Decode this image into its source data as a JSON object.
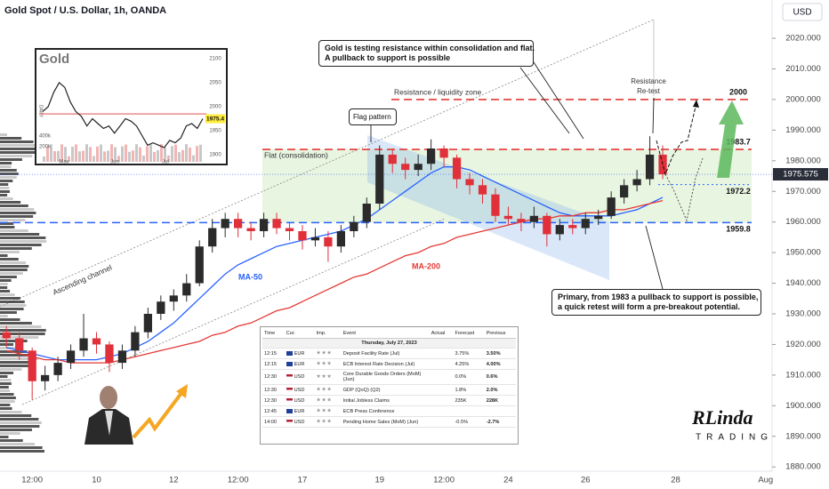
{
  "chart_data": {
    "type": "candlestick",
    "title": "Gold Spot / U.S. Dollar, 1h, OANDA",
    "currency": "USD",
    "categories": [
      null,
      null,
      "12:00",
      null,
      null,
      null,
      null,
      "10",
      null,
      null,
      null,
      null,
      null,
      "12",
      null,
      null,
      null,
      null,
      "12:00",
      null,
      null,
      null,
      null,
      "17",
      null,
      null,
      null,
      null,
      null,
      "19",
      null,
      null,
      null,
      null,
      "12:00",
      null,
      null,
      null,
      null,
      "24",
      null,
      null,
      null,
      null,
      null,
      "26",
      null,
      null,
      null,
      null,
      null,
      null,
      "28",
      null,
      null,
      null,
      null,
      null,
      null,
      "Aug"
    ],
    "open": [
      1924,
      1922,
      1918,
      1908,
      1910,
      1914,
      1918,
      1922,
      1920,
      1914,
      1918,
      1924,
      1930,
      1934,
      1936,
      1940,
      1952,
      1958,
      1961,
      1958,
      1957,
      1961,
      1958,
      1957,
      1954,
      1955,
      1952,
      1957,
      1960,
      1966,
      1982,
      1979,
      1977,
      1979,
      1984,
      1981,
      1974,
      1972,
      1969,
      1962,
      1961,
      1960,
      1962,
      1956,
      1959,
      1958,
      1961,
      1962,
      1968,
      1972,
      1974,
      1982,
      null,
      null,
      null,
      null,
      null,
      null,
      null,
      null
    ],
    "high": [
      1926,
      1924,
      1919,
      1913,
      1916,
      1920,
      1930,
      1924,
      1921,
      1920,
      1926,
      1932,
      1936,
      1938,
      1943,
      1954,
      1961,
      1963,
      1963,
      1960,
      1963,
      1963,
      1960,
      1959,
      1958,
      1957,
      1959,
      1962,
      1968,
      1985,
      1984,
      1981,
      1982,
      1987,
      1985,
      1982,
      1976,
      1974,
      1971,
      1965,
      1963,
      1965,
      1963,
      1961,
      1961,
      1963,
      1964,
      1970,
      1974,
      1977,
      1988,
      1985,
      null,
      null,
      null,
      null,
      null,
      null,
      null,
      null
    ],
    "low": [
      1919,
      1915,
      1902,
      1905,
      1908,
      1912,
      1916,
      1917,
      1911,
      1912,
      1916,
      1922,
      1928,
      1931,
      1934,
      1939,
      1950,
      1955,
      1955,
      1954,
      1955,
      1956,
      1954,
      1951,
      1952,
      1947,
      1950,
      1955,
      1958,
      1964,
      1976,
      1974,
      1975,
      1977,
      1978,
      1971,
      1969,
      1966,
      1960,
      1959,
      1957,
      1958,
      1952,
      1954,
      1956,
      1956,
      1959,
      1961,
      1966,
      1970,
      1972,
      1974,
      null,
      null,
      null,
      null,
      null,
      null,
      null,
      null
    ],
    "close": [
      1922,
      1918,
      1908,
      1910,
      1914,
      1918,
      1922,
      1920,
      1914,
      1918,
      1924,
      1930,
      1934,
      1936,
      1940,
      1952,
      1958,
      1961,
      1958,
      1957,
      1961,
      1958,
      1957,
      1954,
      1955,
      1952,
      1957,
      1960,
      1966,
      1982,
      1979,
      1977,
      1979,
      1984,
      1981,
      1974,
      1972,
      1969,
      1962,
      1961,
      1960,
      1962,
      1956,
      1959,
      1958,
      1961,
      1962,
      1968,
      1972,
      1974,
      1982,
      1975.575,
      null,
      null,
      null,
      null,
      null,
      null,
      null,
      null
    ],
    "up_color": "#2b2b2b",
    "down_color": "#e0303a",
    "series": [
      {
        "name": "MA-50",
        "color": "#2962ff",
        "values": [
          1919,
          1918,
          1917,
          1916,
          1915,
          1915,
          1915,
          1915,
          1916,
          1917,
          1919,
          1921,
          1924,
          1927,
          1931,
          1935,
          1939,
          1943,
          1946,
          1948,
          1950,
          1952,
          1953,
          1954,
          1955,
          1956,
          1957,
          1959,
          1961,
          1964,
          1967,
          1970,
          1973,
          1976,
          1978,
          1978,
          1977,
          1975,
          1973,
          1971,
          1969,
          1967,
          1965,
          1963,
          1962,
          1962,
          1962,
          1962,
          1963,
          1964,
          1966,
          1968,
          null,
          null,
          null,
          null,
          null,
          null,
          null,
          null
        ]
      },
      {
        "name": "MA-200",
        "color": "#e53935",
        "values": [
          1918,
          1917,
          1916,
          1915,
          1915,
          1914,
          1914,
          1914,
          1914,
          1915,
          1916,
          1917,
          1918,
          1919,
          1920,
          1921,
          1923,
          1924,
          1926,
          1927,
          1929,
          1931,
          1932,
          1934,
          1936,
          1938,
          1940,
          1942,
          1943,
          1945,
          1947,
          1949,
          1950,
          1952,
          1953,
          1955,
          1956,
          1957,
          1958,
          1959,
          1960,
          1961,
          1961,
          1962,
          1962,
          1963,
          1963,
          1964,
          1964,
          1965,
          1966,
          1967,
          null,
          null,
          null,
          null,
          null,
          null,
          null,
          null
        ]
      }
    ],
    "levels": [
      {
        "value": 2000,
        "color": "#e53935",
        "style": "dashed"
      },
      {
        "value": 1983.7,
        "color": "#e53935",
        "style": "dashed"
      },
      {
        "value": 1972.2,
        "color": "#2962ff",
        "style": "dotted"
      },
      {
        "value": 1959.8,
        "color": "#2962ff",
        "style": "dashed"
      }
    ],
    "ylim": [
      1878.6,
      2032.5
    ],
    "yticks": [
      {
        "value": 1880,
        "label": "1880.000"
      },
      {
        "value": 1890,
        "label": "1890.000"
      },
      {
        "value": 1900,
        "label": "1900.000"
      },
      {
        "value": 1910,
        "label": "1910.000"
      },
      {
        "value": 1920,
        "label": "1920.000"
      },
      {
        "value": 1930,
        "label": "1930.000"
      },
      {
        "value": 1940,
        "label": "1940.000"
      },
      {
        "value": 1950,
        "label": "1950.000"
      },
      {
        "value": 1960,
        "label": "1960.000"
      },
      {
        "value": 1970,
        "label": "1970.000"
      },
      {
        "value": 1980,
        "label": "1980.000"
      },
      {
        "value": 1990,
        "label": "1990.000"
      },
      {
        "value": 2000,
        "label": "2000.000"
      },
      {
        "value": 2010,
        "label": "2010.000"
      },
      {
        "value": 2020,
        "label": "2020.000"
      }
    ],
    "annotations": {
      "callout_main": [
        "Gold is testing resistance within consolidation and flat.",
        "A pullback to support is possible"
      ],
      "resistance_zone": "Resistance / liquidity zone",
      "retest": [
        "Resistance",
        "Re-test"
      ],
      "flag": "Flag pattern",
      "flat": "Flat (consolidation)",
      "channel": "Ascending channel",
      "primary": [
        "Primary, from 1983 a pullback to support is possible,",
        "a quick retest will form a pre-breakout potential."
      ]
    },
    "inset": {
      "title": "Gold",
      "side_label": "DAILY",
      "ylim": [
        1880,
        2120
      ],
      "yticks": [
        1900,
        1950,
        2000,
        2050,
        2100
      ],
      "values": [
        1990,
        2000,
        2030,
        2050,
        2040,
        2010,
        1990,
        1980,
        1960,
        1975,
        1965,
        1955,
        1960,
        1945,
        1960,
        1975,
        1970,
        1960,
        1940,
        1920,
        1925,
        1920,
        1915,
        1930,
        1925,
        1935,
        1960,
        1965,
        1955,
        1975
      ],
      "price_label": "1975.4",
      "volume_ticks": [
        "400k",
        "200k"
      ],
      "months": [
        "May",
        "Jun",
        "Jul"
      ]
    },
    "calendar": {
      "headers": [
        "Time",
        "Cur.",
        "Imp.",
        "Event",
        "Actual",
        "Forecast",
        "Previous"
      ],
      "date": "Thursday, July 27, 2023",
      "rows": [
        {
          "time": "12:15",
          "currency": "EUR",
          "event": "Deposit Facility Rate (Jul)",
          "forecast": "3.75%",
          "previous": "3.50%"
        },
        {
          "time": "12:15",
          "currency": "EUR",
          "event": "ECB Interest Rate Decision (Jul)",
          "forecast": "4.25%",
          "previous": "4.00%"
        },
        {
          "time": "12:30",
          "currency": "USD",
          "event": "Core Durable Goods Orders (MoM) (Jun)",
          "forecast": "0.0%",
          "previous": "0.6%"
        },
        {
          "time": "12:30",
          "currency": "USD",
          "event": "GDP (QoQ) (Q2)",
          "forecast": "1.8%",
          "previous": "2.0%"
        },
        {
          "time": "12:30",
          "currency": "USD",
          "event": "Initial Jobless Claims",
          "forecast": "235K",
          "previous": "228K"
        },
        {
          "time": "12:45",
          "currency": "EUR",
          "event": "ECB Press Conference"
        },
        {
          "time": "14:00",
          "currency": "USD",
          "event": "Pending Home Sales (MoM) (Jun)",
          "forecast": "-0.5%",
          "previous": "-2.7%"
        }
      ]
    },
    "logo": {
      "name": "RLinda",
      "tagline": "TRADING"
    }
  }
}
